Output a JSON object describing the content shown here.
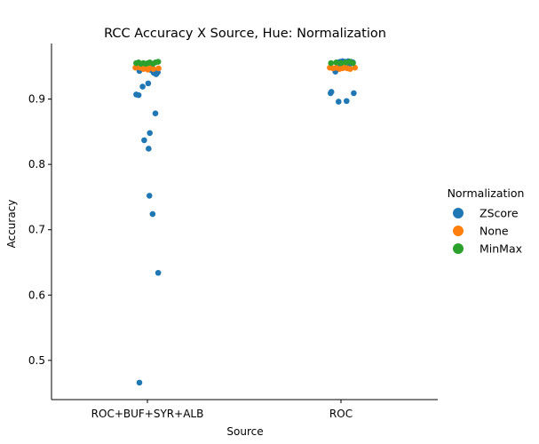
{
  "chart_data": {
    "type": "scatter",
    "title": "RCC Accuracy X Source, Hue: Normalization",
    "xlabel": "Source",
    "ylabel": "Accuracy",
    "categories": [
      "ROC+BUF+SYR+ALB",
      "ROC"
    ],
    "ylim": [
      0.44,
      0.985
    ],
    "yticks": [
      0.5,
      0.6,
      0.7,
      0.8,
      0.9
    ],
    "ytick_labels": [
      "0.5",
      "0.6",
      "0.7",
      "0.8",
      "0.9"
    ],
    "grid": false,
    "legend": {
      "title": "Normalization",
      "placement": "right",
      "entries": [
        "ZScore",
        "None",
        "MinMax"
      ]
    },
    "colors": {
      "ZScore": "#1f77b4",
      "None": "#ff7f0e",
      "MinMax": "#2ca02c"
    },
    "series": [
      {
        "name": "ZScore",
        "points": [
          {
            "cat": "ROC+BUF+SYR+ALB",
            "jitter": -0.28,
            "y": 0.907
          },
          {
            "cat": "ROC+BUF+SYR+ALB",
            "jitter": -0.22,
            "y": 0.906
          },
          {
            "cat": "ROC+BUF+SYR+ALB",
            "jitter": -0.12,
            "y": 0.919
          },
          {
            "cat": "ROC+BUF+SYR+ALB",
            "jitter": 0.02,
            "y": 0.924
          },
          {
            "cat": "ROC+BUF+SYR+ALB",
            "jitter": -0.2,
            "y": 0.943
          },
          {
            "cat": "ROC+BUF+SYR+ALB",
            "jitter": 0.1,
            "y": 0.944
          },
          {
            "cat": "ROC+BUF+SYR+ALB",
            "jitter": 0.16,
            "y": 0.94
          },
          {
            "cat": "ROC+BUF+SYR+ALB",
            "jitter": 0.22,
            "y": 0.938
          },
          {
            "cat": "ROC+BUF+SYR+ALB",
            "jitter": 0.26,
            "y": 0.941
          },
          {
            "cat": "ROC+BUF+SYR+ALB",
            "jitter": 0.2,
            "y": 0.878
          },
          {
            "cat": "ROC+BUF+SYR+ALB",
            "jitter": 0.06,
            "y": 0.848
          },
          {
            "cat": "ROC+BUF+SYR+ALB",
            "jitter": -0.08,
            "y": 0.837
          },
          {
            "cat": "ROC+BUF+SYR+ALB",
            "jitter": 0.03,
            "y": 0.824
          },
          {
            "cat": "ROC+BUF+SYR+ALB",
            "jitter": 0.05,
            "y": 0.752
          },
          {
            "cat": "ROC+BUF+SYR+ALB",
            "jitter": 0.13,
            "y": 0.724
          },
          {
            "cat": "ROC+BUF+SYR+ALB",
            "jitter": 0.27,
            "y": 0.634
          },
          {
            "cat": "ROC+BUF+SYR+ALB",
            "jitter": -0.2,
            "y": 0.466
          },
          {
            "cat": "ROC",
            "jitter": -0.07,
            "y": 0.956
          },
          {
            "cat": "ROC",
            "jitter": -0.02,
            "y": 0.957
          },
          {
            "cat": "ROC",
            "jitter": 0.04,
            "y": 0.958
          },
          {
            "cat": "ROC",
            "jitter": 0.1,
            "y": 0.957
          },
          {
            "cat": "ROC",
            "jitter": 0.18,
            "y": 0.958
          },
          {
            "cat": "ROC",
            "jitter": 0.25,
            "y": 0.957
          },
          {
            "cat": "ROC",
            "jitter": 0.3,
            "y": 0.956
          },
          {
            "cat": "ROC",
            "jitter": -0.01,
            "y": 0.952
          },
          {
            "cat": "ROC",
            "jitter": 0.21,
            "y": 0.953
          },
          {
            "cat": "ROC",
            "jitter": -0.14,
            "y": 0.942
          },
          {
            "cat": "ROC",
            "jitter": -0.26,
            "y": 0.909
          },
          {
            "cat": "ROC",
            "jitter": -0.24,
            "y": 0.911
          },
          {
            "cat": "ROC",
            "jitter": 0.32,
            "y": 0.909
          },
          {
            "cat": "ROC",
            "jitter": -0.06,
            "y": 0.896
          },
          {
            "cat": "ROC",
            "jitter": 0.14,
            "y": 0.897
          }
        ]
      },
      {
        "name": "None",
        "points": [
          {
            "cat": "ROC+BUF+SYR+ALB",
            "jitter": -0.3,
            "y": 0.948
          },
          {
            "cat": "ROC+BUF+SYR+ALB",
            "jitter": -0.24,
            "y": 0.949
          },
          {
            "cat": "ROC+BUF+SYR+ALB",
            "jitter": -0.18,
            "y": 0.948
          },
          {
            "cat": "ROC+BUF+SYR+ALB",
            "jitter": -0.1,
            "y": 0.946
          },
          {
            "cat": "ROC+BUF+SYR+ALB",
            "jitter": -0.04,
            "y": 0.947
          },
          {
            "cat": "ROC+BUF+SYR+ALB",
            "jitter": 0.01,
            "y": 0.945
          },
          {
            "cat": "ROC+BUF+SYR+ALB",
            "jitter": 0.08,
            "y": 0.948
          },
          {
            "cat": "ROC+BUF+SYR+ALB",
            "jitter": 0.15,
            "y": 0.946
          },
          {
            "cat": "ROC+BUF+SYR+ALB",
            "jitter": 0.28,
            "y": 0.947
          },
          {
            "cat": "ROC",
            "jitter": -0.28,
            "y": 0.948
          },
          {
            "cat": "ROC",
            "jitter": -0.2,
            "y": 0.947
          },
          {
            "cat": "ROC",
            "jitter": -0.12,
            "y": 0.948
          },
          {
            "cat": "ROC",
            "jitter": -0.04,
            "y": 0.946
          },
          {
            "cat": "ROC",
            "jitter": 0.03,
            "y": 0.947
          },
          {
            "cat": "ROC",
            "jitter": 0.09,
            "y": 0.948
          },
          {
            "cat": "ROC",
            "jitter": 0.16,
            "y": 0.947
          },
          {
            "cat": "ROC",
            "jitter": 0.23,
            "y": 0.946
          },
          {
            "cat": "ROC",
            "jitter": 0.35,
            "y": 0.948
          }
        ]
      },
      {
        "name": "MinMax",
        "points": [
          {
            "cat": "ROC+BUF+SYR+ALB",
            "jitter": -0.28,
            "y": 0.955
          },
          {
            "cat": "ROC+BUF+SYR+ALB",
            "jitter": -0.22,
            "y": 0.956
          },
          {
            "cat": "ROC+BUF+SYR+ALB",
            "jitter": -0.16,
            "y": 0.954
          },
          {
            "cat": "ROC+BUF+SYR+ALB",
            "jitter": -0.1,
            "y": 0.955
          },
          {
            "cat": "ROC+BUF+SYR+ALB",
            "jitter": -0.04,
            "y": 0.954
          },
          {
            "cat": "ROC+BUF+SYR+ALB",
            "jitter": 0.02,
            "y": 0.955
          },
          {
            "cat": "ROC+BUF+SYR+ALB",
            "jitter": 0.06,
            "y": 0.956
          },
          {
            "cat": "ROC+BUF+SYR+ALB",
            "jitter": 0.14,
            "y": 0.954
          },
          {
            "cat": "ROC+BUF+SYR+ALB",
            "jitter": 0.2,
            "y": 0.956
          },
          {
            "cat": "ROC+BUF+SYR+ALB",
            "jitter": 0.27,
            "y": 0.957
          },
          {
            "cat": "ROC",
            "jitter": -0.25,
            "y": 0.955
          },
          {
            "cat": "ROC",
            "jitter": -0.12,
            "y": 0.956
          },
          {
            "cat": "ROC",
            "jitter": 0.0,
            "y": 0.955
          },
          {
            "cat": "ROC",
            "jitter": 0.12,
            "y": 0.956
          },
          {
            "cat": "ROC",
            "jitter": 0.22,
            "y": 0.957
          },
          {
            "cat": "ROC",
            "jitter": 0.3,
            "y": 0.955
          }
        ]
      }
    ]
  }
}
